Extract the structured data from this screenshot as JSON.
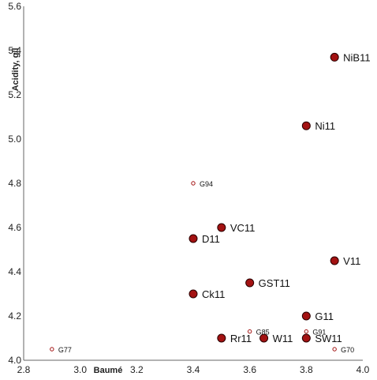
{
  "chart_data": {
    "type": "scatter",
    "title": "",
    "xlabel": "Baumé",
    "ylabel": "Acidity, g/l",
    "xlim": [
      2.8,
      4.0
    ],
    "ylim": [
      4.0,
      5.6
    ],
    "xticks": [
      "2.8",
      "3.0",
      "3.2",
      "3.4",
      "3.6",
      "3.8",
      "4.0"
    ],
    "yticks": [
      "4.0",
      "4.2",
      "4.4",
      "4.6",
      "4.8",
      "5.0",
      "5.2",
      "5.4",
      "5.6"
    ],
    "grid": false,
    "colors": {
      "filled": "#a31212",
      "hollow_stroke": "#a31212",
      "axis": "#666666"
    },
    "series": [
      {
        "marker": "filled-circle",
        "points": [
          {
            "label": "NiB11",
            "x": 3.9,
            "y": 5.37
          },
          {
            "label": "Ni11",
            "x": 3.8,
            "y": 5.06
          },
          {
            "label": "VC11",
            "x": 3.5,
            "y": 4.6
          },
          {
            "label": "D11",
            "x": 3.4,
            "y": 4.55
          },
          {
            "label": "V11",
            "x": 3.9,
            "y": 4.45
          },
          {
            "label": "GST11",
            "x": 3.6,
            "y": 4.35
          },
          {
            "label": "Ck11",
            "x": 3.4,
            "y": 4.3
          },
          {
            "label": "G11",
            "x": 3.8,
            "y": 4.2
          },
          {
            "label": "Rr11",
            "x": 3.5,
            "y": 4.1
          },
          {
            "label": "W11",
            "x": 3.65,
            "y": 4.1
          },
          {
            "label": "SW11",
            "x": 3.8,
            "y": 4.1
          }
        ]
      },
      {
        "marker": "hollow-circle",
        "points": [
          {
            "label": "G94",
            "x": 3.4,
            "y": 4.8
          },
          {
            "label": "G85",
            "x": 3.6,
            "y": 4.13
          },
          {
            "label": "G91",
            "x": 3.8,
            "y": 4.13
          },
          {
            "label": "G77",
            "x": 2.9,
            "y": 4.05
          },
          {
            "label": "G70",
            "x": 3.9,
            "y": 4.05
          }
        ]
      }
    ]
  }
}
